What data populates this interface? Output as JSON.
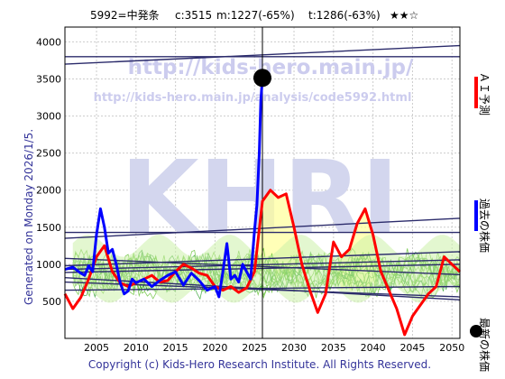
{
  "header": {
    "code": "5992=中発条",
    "current": "c:3515",
    "max": "m:1227(-65%)",
    "target": "t:1286(-63%)",
    "rating": "★★☆"
  },
  "watermark": {
    "url": "http://kids-hero.main.jp/",
    "url2": "http://kids-hero.main.jp/analysis/code5992.html",
    "logo": "KHRI"
  },
  "side_left": "Generated on Monday 2026/1/5.",
  "legend": [
    {
      "label": "ＡＩ予測",
      "color": "#ff0000"
    },
    {
      "label": "過去の株価",
      "color": "#0000ff"
    },
    {
      "label": "最新の株価",
      "color": "#000000"
    }
  ],
  "footer": "Copyright (c) Kids-Hero Research Institute. All Rights Reserved.",
  "colors": {
    "ai_line": "#ff0000",
    "past_line": "#0000ff",
    "latest_dot": "#000000",
    "trend_lines": "#2b2b6b",
    "band_green": "#66cc33",
    "band_yellow": "#ffff99"
  },
  "chart_data": {
    "type": "line",
    "xlim": [
      2001,
      2051
    ],
    "ylim": [
      0,
      4200
    ],
    "x_ticks": [
      2005,
      2010,
      2015,
      2020,
      2025,
      2030,
      2035,
      2040,
      2045,
      2050
    ],
    "y_ticks": [
      500,
      1000,
      1500,
      2000,
      2500,
      3000,
      3500,
      4000
    ],
    "grid": true,
    "latest": {
      "x": 2026.0,
      "y": 3515
    },
    "current_marker_x": 2026.0,
    "series": [
      {
        "name": "過去の株価",
        "x": [
          2001,
          2002,
          2003,
          2003.5,
          2004,
          2004.5,
          2005,
          2005.5,
          2006,
          2006.5,
          2007,
          2007.5,
          2008,
          2008.5,
          2009,
          2009.5,
          2010,
          2011,
          2012,
          2013,
          2014,
          2015,
          2016,
          2017,
          2018,
          2019,
          2020,
          2020.5,
          2021,
          2021.5,
          2022,
          2022.5,
          2023,
          2023.5,
          2024,
          2024.5,
          2025,
          2025.3,
          2025.6,
          2025.8,
          2026
        ],
        "y": [
          930,
          960,
          880,
          850,
          980,
          900,
          1400,
          1750,
          1500,
          1150,
          1200,
          1000,
          750,
          600,
          640,
          800,
          750,
          800,
          700,
          780,
          850,
          900,
          720,
          880,
          780,
          650,
          700,
          560,
          900,
          1280,
          800,
          850,
          760,
          1000,
          900,
          800,
          1450,
          1800,
          2500,
          3200,
          3515
        ]
      },
      {
        "name": "ＡＩ予測",
        "x": [
          2001,
          2002,
          2003,
          2004,
          2005,
          2006,
          2007,
          2008,
          2009,
          2010,
          2011,
          2012,
          2013,
          2014,
          2015,
          2016,
          2017,
          2018,
          2019,
          2020,
          2021,
          2022,
          2023,
          2024,
          2025,
          2026,
          2027,
          2028,
          2029,
          2030,
          2031,
          2032,
          2033,
          2034,
          2035,
          2036,
          2037,
          2038,
          2039,
          2040,
          2041,
          2042,
          2043,
          2044,
          2045,
          2046,
          2047,
          2048,
          2049,
          2050,
          2051
        ],
        "y": [
          600,
          400,
          550,
          800,
          1100,
          1250,
          900,
          750,
          700,
          750,
          800,
          850,
          760,
          780,
          900,
          1000,
          950,
          880,
          850,
          700,
          650,
          700,
          620,
          680,
          900,
          1850,
          2000,
          1900,
          1950,
          1500,
          1000,
          650,
          350,
          600,
          1300,
          1100,
          1200,
          1550,
          1750,
          1400,
          900,
          650,
          400,
          50,
          300,
          450,
          600,
          700,
          1100,
          1000,
          900
        ]
      }
    ]
  }
}
